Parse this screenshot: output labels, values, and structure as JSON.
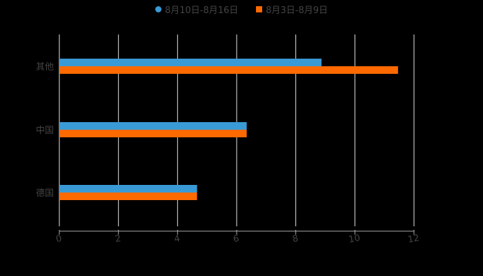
{
  "chart_data": {
    "type": "bar",
    "orientation": "horizontal",
    "title": "",
    "categories": [
      "其他",
      "中国",
      "德国"
    ],
    "series": [
      {
        "name": "8月10日-8月16日",
        "color": "#3a9ad6",
        "values": [
          8.87,
          6.34,
          4.66
        ]
      },
      {
        "name": "8月3日-8月9日",
        "color": "#ff6a00",
        "values": [
          11.46,
          6.34,
          4.66
        ]
      }
    ],
    "xlabel": "",
    "ylabel": "",
    "xlim": [
      0,
      12
    ],
    "xticks": [
      "0",
      "2",
      "4",
      "6",
      "8",
      "10",
      "12"
    ],
    "grid": true,
    "legend_position": "top"
  },
  "legend": [
    {
      "label": "8月10日-8月16日",
      "color": "#3a9ad6",
      "shape": "circle"
    },
    {
      "label": "8月3日-8月9日",
      "color": "#ff6a00",
      "shape": "square"
    }
  ]
}
